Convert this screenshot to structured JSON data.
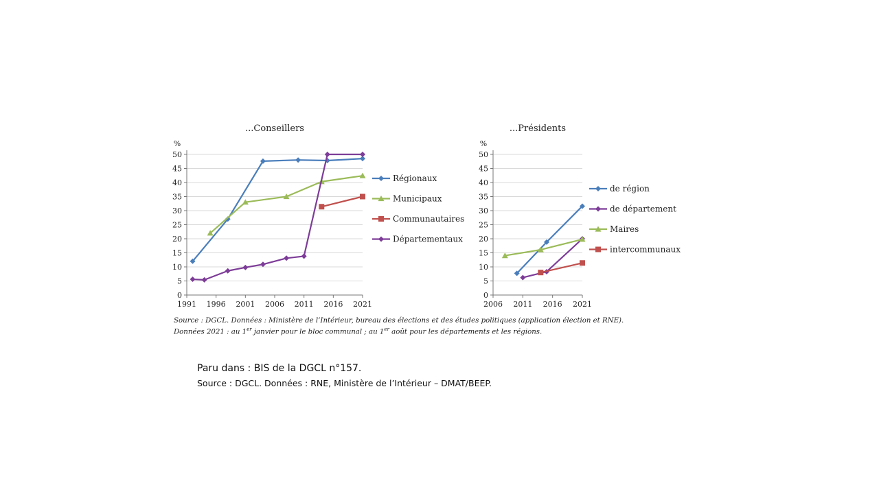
{
  "chart_data": [
    {
      "type": "line",
      "title": "...Conseillers",
      "ylabel": "%",
      "xlim": [
        1991,
        2021
      ],
      "ylim": [
        0,
        50
      ],
      "x_ticks": [
        1991,
        1996,
        2001,
        2006,
        2011,
        2016,
        2021
      ],
      "y_ticks": [
        0,
        5,
        10,
        15,
        20,
        25,
        30,
        35,
        40,
        45,
        50
      ],
      "grid": "horizontal",
      "legend": "right",
      "series": [
        {
          "name": "Régionaux",
          "color": "#4a7ebb",
          "marker": "diamond",
          "x": [
            1992,
            1998,
            2004,
            2010,
            2015,
            2021
          ],
          "y": [
            12,
            27,
            47.6,
            48,
            47.8,
            48.5
          ]
        },
        {
          "name": "Municipaux",
          "color": "#9bbb59",
          "marker": "triangle",
          "x": [
            1995,
            2001,
            2008,
            2014,
            2021
          ],
          "y": [
            22,
            33,
            35,
            40.3,
            42.4
          ]
        },
        {
          "name": "Communautaires",
          "color": "#c0504d",
          "marker": "square",
          "x": [
            2014,
            2021
          ],
          "y": [
            31.4,
            35
          ]
        },
        {
          "name": "Départementaux",
          "color": "#7d3c98",
          "marker": "diamond",
          "x": [
            1992,
            1994,
            1998,
            2001,
            2004,
            2008,
            2011,
            2015,
            2021
          ],
          "y": [
            5.6,
            5.4,
            8.6,
            9.8,
            10.9,
            13.1,
            13.8,
            50,
            50
          ]
        }
      ]
    },
    {
      "type": "line",
      "title": "...Présidents",
      "ylabel": "%",
      "xlim": [
        2006,
        2021
      ],
      "ylim": [
        0,
        50
      ],
      "x_ticks": [
        2006,
        2011,
        2016,
        2021
      ],
      "y_ticks": [
        0,
        5,
        10,
        15,
        20,
        25,
        30,
        35,
        40,
        45,
        50
      ],
      "grid": "horizontal",
      "legend": "right",
      "series": [
        {
          "name": "de région",
          "color": "#4a7ebb",
          "marker": "diamond",
          "x": [
            2010,
            2015,
            2021
          ],
          "y": [
            7.7,
            18.8,
            31.6
          ]
        },
        {
          "name": "de département",
          "color": "#7d3c98",
          "marker": "diamond",
          "x": [
            2011,
            2015,
            2021
          ],
          "y": [
            6.2,
            8.3,
            20
          ]
        },
        {
          "name": "Maires",
          "color": "#9bbb59",
          "marker": "triangle",
          "x": [
            2008,
            2014,
            2021
          ],
          "y": [
            14,
            16.1,
            19.8
          ]
        },
        {
          "name": "intercommunaux",
          "color": "#c0504d",
          "marker": "square",
          "x": [
            2014,
            2021
          ],
          "y": [
            8,
            11.4
          ]
        }
      ]
    }
  ],
  "notes": {
    "line1": "Source : DGCL. Données : Ministère de l’Intérieur, bureau des élections et des études politiques (application élection et RNE).",
    "line2_a": "Données 2021 : au 1",
    "line2_sup1": "er",
    "line2_b": " janvier pour le bloc communal ; au 1",
    "line2_sup2": "er",
    "line2_c": " août pour les départements et les régions."
  },
  "footer": {
    "paru": "Paru dans : BIS de la DGCL n°157.",
    "source": "Source : DGCL. Données : RNE, Ministère de l’Intérieur – DMAT/BEEP."
  }
}
